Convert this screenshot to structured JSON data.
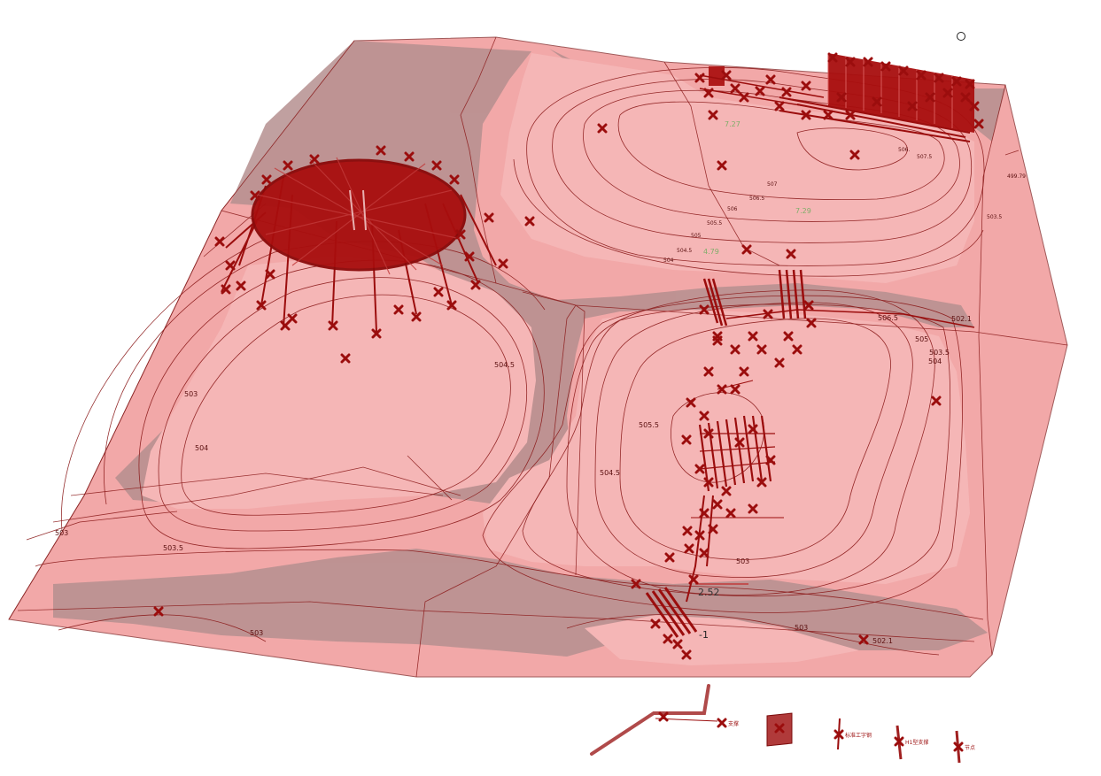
{
  "viewport": {
    "background": "#ffffff",
    "terrain_fill": "#f2a8a8",
    "terrain_dark": "#b89494",
    "contour_color": "#8b1a1a",
    "marker_color": "#9b0d0d"
  },
  "contour_labels": [
    {
      "id": "c1",
      "text": "504.5"
    },
    {
      "id": "c2",
      "text": "503"
    },
    {
      "id": "c3",
      "text": "504"
    },
    {
      "id": "c4",
      "text": "503"
    },
    {
      "id": "c5",
      "text": "503.5"
    },
    {
      "id": "c6",
      "text": "503"
    },
    {
      "id": "c7",
      "text": "505.5"
    },
    {
      "id": "c8",
      "text": "504.5"
    },
    {
      "id": "c9",
      "text": "503"
    },
    {
      "id": "c10",
      "text": "503"
    },
    {
      "id": "c11",
      "text": "502.1"
    },
    {
      "id": "c12",
      "text": "505"
    },
    {
      "id": "c13",
      "text": "503.5"
    },
    {
      "id": "c14",
      "text": "504"
    },
    {
      "id": "c15",
      "text": "506.5"
    },
    {
      "id": "c16",
      "text": "502.1"
    },
    {
      "id": "c17",
      "text": "506.5"
    },
    {
      "id": "c18",
      "text": "506"
    },
    {
      "id": "c19",
      "text": "505.5"
    },
    {
      "id": "c20",
      "text": "505"
    },
    {
      "id": "c21",
      "text": "504.5"
    },
    {
      "id": "c22",
      "text": "504"
    },
    {
      "id": "c23",
      "text": "507"
    },
    {
      "id": "c24",
      "text": "506."
    },
    {
      "id": "c25",
      "text": "507.5"
    },
    {
      "id": "c26",
      "text": "499.79"
    },
    {
      "id": "c27",
      "text": "503.5"
    }
  ],
  "spot_labels": [
    {
      "id": "s1",
      "text": "2.52"
    },
    {
      "id": "s2",
      "text": "-1"
    },
    {
      "id": "s3",
      "text": "7.27"
    },
    {
      "id": "s4",
      "text": "7.29"
    },
    {
      "id": "s5",
      "text": "4.79"
    }
  ],
  "legend": [
    {
      "id": "l1",
      "text": "支撑"
    },
    {
      "id": "l2",
      "text": "标准工字钢"
    },
    {
      "id": "l3",
      "text": "H1型支撑"
    },
    {
      "id": "l4",
      "text": "节点"
    }
  ]
}
